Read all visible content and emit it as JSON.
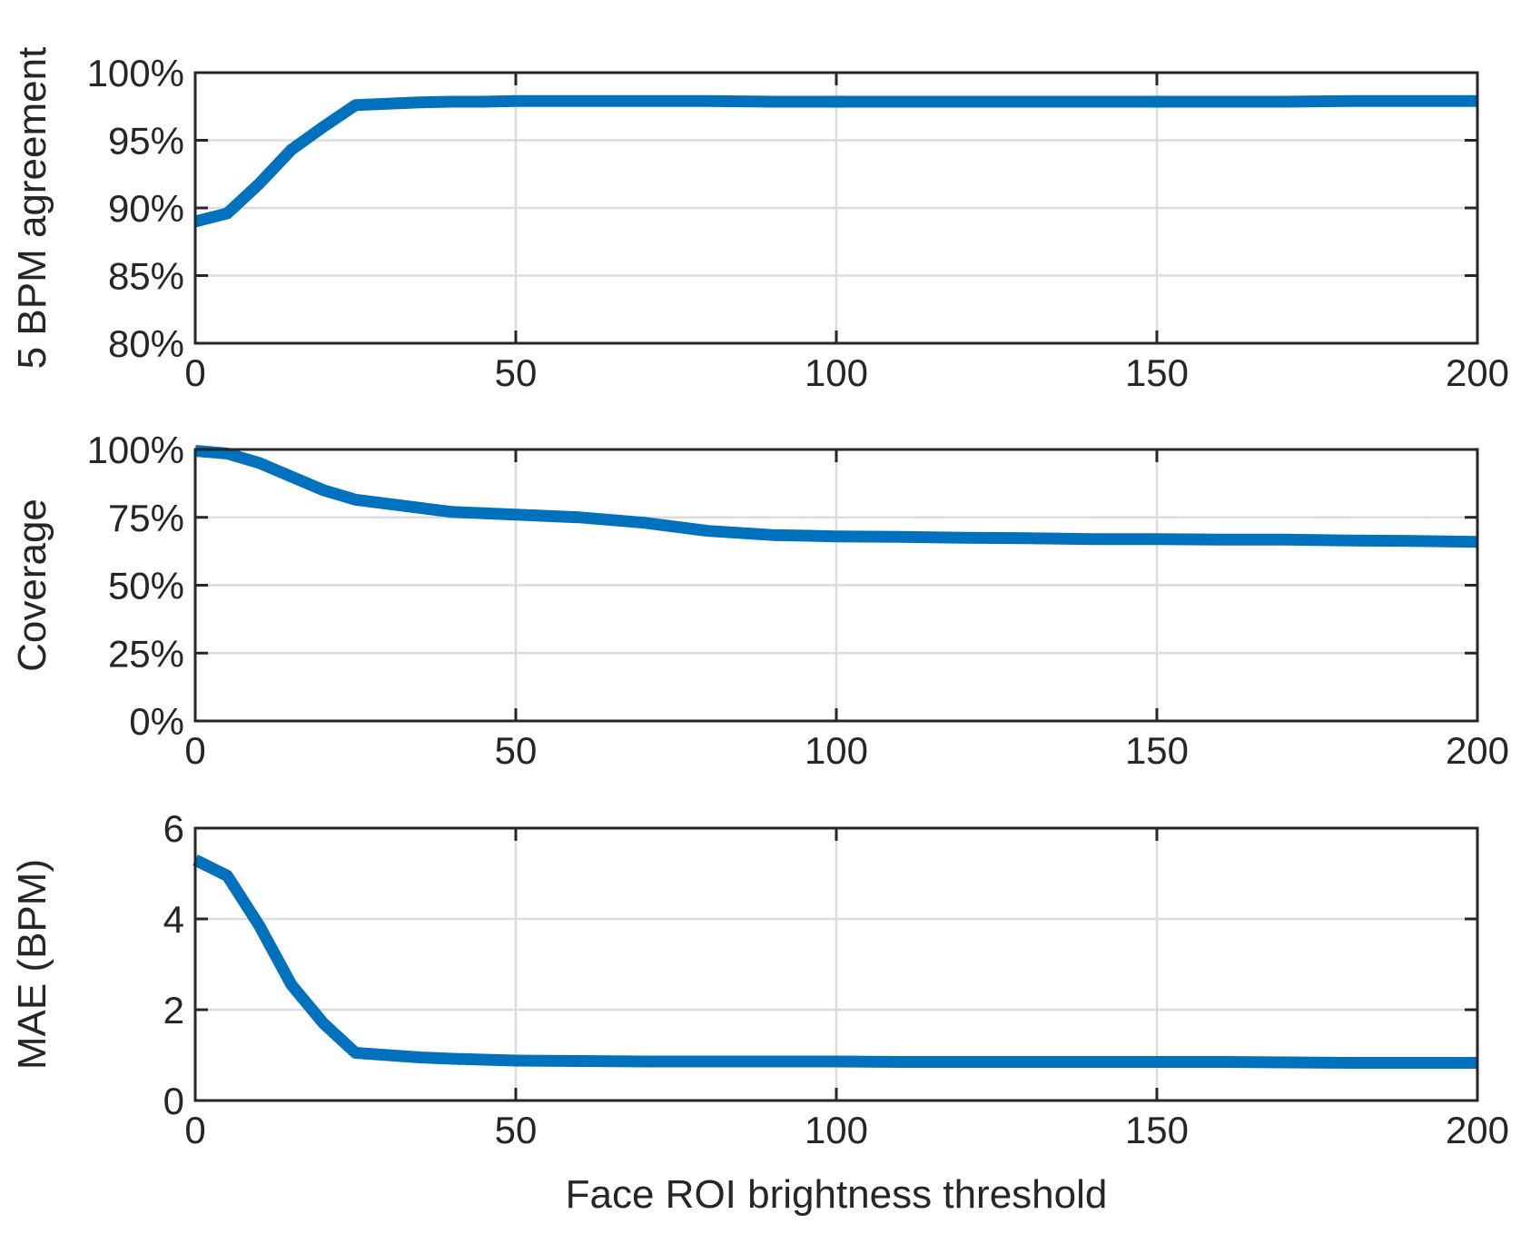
{
  "chart_data": [
    {
      "type": "line",
      "ylabel": "5 BPM agreement",
      "xlabel": "",
      "xlim": [
        0,
        200
      ],
      "ylim": [
        80,
        100
      ],
      "xticks": [
        0,
        50,
        100,
        150,
        200
      ],
      "xtick_labels": [
        "0",
        "50",
        "100",
        "150",
        "200"
      ],
      "yticks": [
        80,
        85,
        90,
        95,
        100
      ],
      "ytick_labels": [
        "80%",
        "85%",
        "90%",
        "95%",
        "100%"
      ],
      "grid": true,
      "color": "#0072BD",
      "series": [
        {
          "x": [
            0,
            5,
            10,
            15,
            20,
            25,
            30,
            35,
            40,
            45,
            50,
            60,
            70,
            80,
            90,
            100,
            110,
            120,
            130,
            140,
            150,
            160,
            170,
            180,
            190,
            200
          ],
          "y": [
            89.0,
            89.6,
            91.8,
            94.3,
            96.0,
            97.6,
            97.7,
            97.8,
            97.85,
            97.85,
            97.9,
            97.9,
            97.9,
            97.9,
            97.85,
            97.85,
            97.85,
            97.85,
            97.85,
            97.85,
            97.85,
            97.85,
            97.85,
            97.9,
            97.9,
            97.9
          ]
        }
      ]
    },
    {
      "type": "line",
      "ylabel": "Coverage",
      "xlabel": "",
      "xlim": [
        0,
        200
      ],
      "ylim": [
        0,
        100
      ],
      "xticks": [
        0,
        50,
        100,
        150,
        200
      ],
      "xtick_labels": [
        "0",
        "50",
        "100",
        "150",
        "200"
      ],
      "yticks": [
        0,
        25,
        50,
        75,
        100
      ],
      "ytick_labels": [
        "0%",
        "25%",
        "50%",
        "75%",
        "100%"
      ],
      "grid": true,
      "color": "#0072BD",
      "series": [
        {
          "x": [
            0,
            5,
            10,
            15,
            20,
            25,
            30,
            35,
            40,
            45,
            50,
            60,
            70,
            80,
            90,
            100,
            110,
            120,
            130,
            140,
            150,
            160,
            170,
            180,
            190,
            200
          ],
          "y": [
            99.5,
            98.5,
            95.0,
            90.0,
            85.0,
            81.5,
            80.0,
            78.5,
            77.0,
            76.5,
            76.0,
            75.0,
            73.0,
            70.0,
            68.5,
            68.0,
            67.8,
            67.5,
            67.3,
            67.0,
            67.0,
            66.8,
            66.8,
            66.5,
            66.3,
            66.0
          ]
        }
      ]
    },
    {
      "type": "line",
      "ylabel": "MAE (BPM)",
      "xlabel": "Face ROI brightness threshold",
      "xlim": [
        0,
        200
      ],
      "ylim": [
        0,
        6
      ],
      "xticks": [
        0,
        50,
        100,
        150,
        200
      ],
      "xtick_labels": [
        "0",
        "50",
        "100",
        "150",
        "200"
      ],
      "yticks": [
        0,
        2,
        4,
        6
      ],
      "ytick_labels": [
        "0",
        "2",
        "4",
        "6"
      ],
      "grid": true,
      "color": "#0072BD",
      "series": [
        {
          "x": [
            0,
            5,
            10,
            15,
            20,
            25,
            30,
            35,
            40,
            45,
            50,
            60,
            70,
            80,
            90,
            100,
            110,
            120,
            130,
            140,
            150,
            160,
            170,
            180,
            190,
            200
          ],
          "y": [
            5.3,
            4.95,
            3.85,
            2.55,
            1.7,
            1.05,
            1.0,
            0.95,
            0.92,
            0.9,
            0.88,
            0.87,
            0.86,
            0.86,
            0.86,
            0.86,
            0.85,
            0.85,
            0.85,
            0.85,
            0.85,
            0.85,
            0.84,
            0.83,
            0.83,
            0.83
          ]
        }
      ]
    }
  ]
}
